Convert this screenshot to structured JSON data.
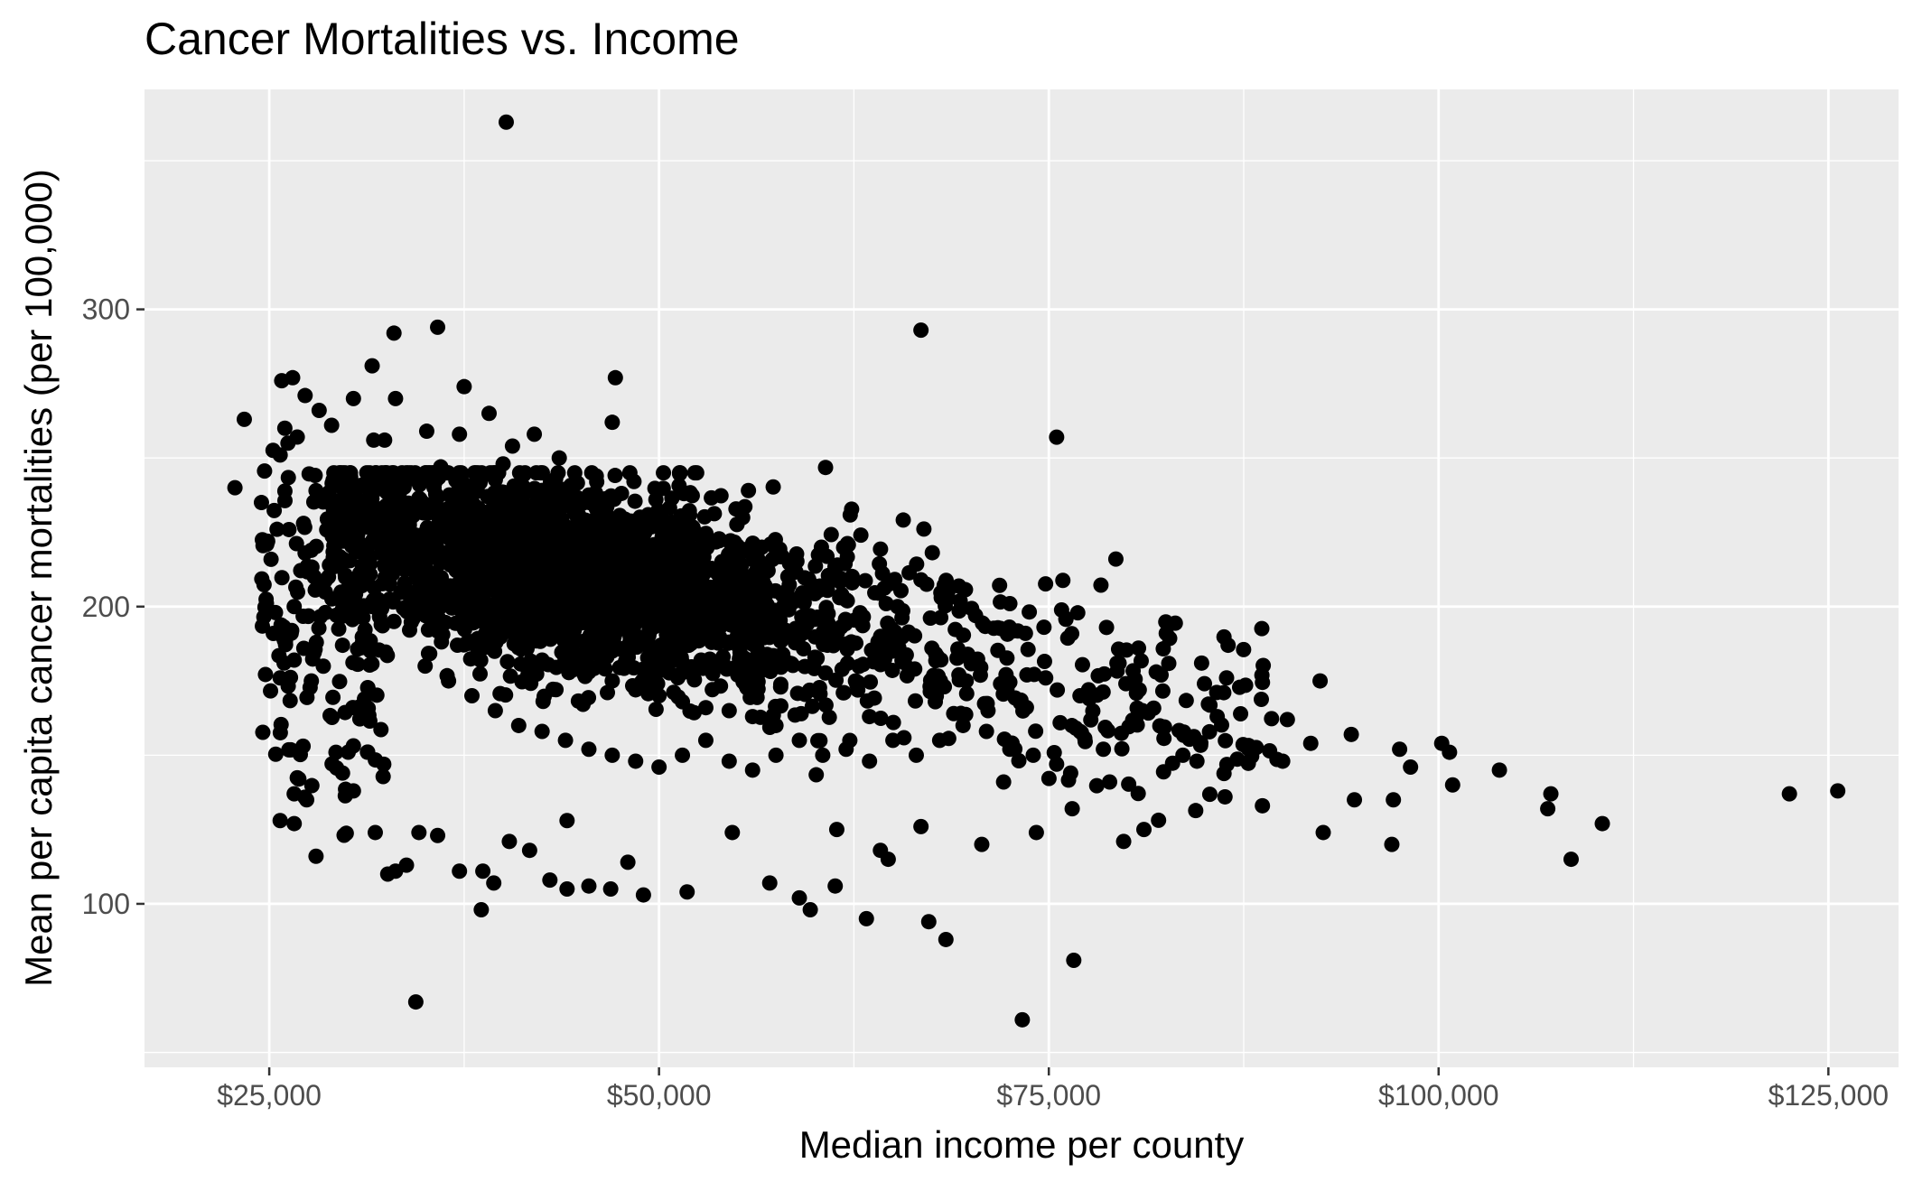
{
  "chart_data": {
    "type": "scatter",
    "title": "Cancer Mortalities vs. Income",
    "xlabel": "Median income per county",
    "ylabel": "Mean per capita cancer mortalities (per 100,000)",
    "xlim": [
      17000,
      129500
    ],
    "ylim": [
      45,
      374
    ],
    "x_ticks": [
      25000,
      50000,
      75000,
      100000,
      125000
    ],
    "x_tick_labels": [
      "$25,000",
      "$50,000",
      "$75,000",
      "$100,000",
      "$125,000"
    ],
    "y_ticks": [
      100,
      200,
      300
    ],
    "y_tick_labels": [
      "100",
      "200",
      "300"
    ],
    "grid": true,
    "colors": {
      "panel": "#ebebeb",
      "grid": "#ffffff",
      "point": "#000000",
      "tick": "#333333"
    },
    "points_note": "dense cloud of roughly 3000 county points; outliers and cluster centers listed",
    "points": [
      [
        40200,
        363
      ],
      [
        66800,
        293
      ],
      [
        35800,
        294
      ],
      [
        33000,
        292
      ],
      [
        75500,
        257
      ],
      [
        79300,
        216
      ],
      [
        47200,
        277
      ],
      [
        47000,
        262
      ],
      [
        23400,
        263
      ],
      [
        25800,
        276
      ],
      [
        26500,
        277
      ],
      [
        31600,
        281
      ],
      [
        22800,
        240
      ],
      [
        24900,
        222
      ],
      [
        25400,
        198
      ],
      [
        26600,
        200
      ],
      [
        24500,
        235
      ],
      [
        34400,
        67
      ],
      [
        73300,
        61
      ],
      [
        76600,
        81
      ],
      [
        38600,
        98
      ],
      [
        63300,
        95
      ],
      [
        67300,
        94
      ],
      [
        68400,
        88
      ],
      [
        59700,
        98
      ],
      [
        49000,
        103
      ],
      [
        51800,
        104
      ],
      [
        45500,
        106
      ],
      [
        61300,
        106
      ],
      [
        125600,
        138
      ],
      [
        122500,
        137
      ],
      [
        108500,
        115
      ],
      [
        110500,
        127
      ],
      [
        107200,
        137
      ],
      [
        107000,
        132
      ],
      [
        103900,
        145
      ],
      [
        100700,
        151
      ],
      [
        100200,
        154
      ],
      [
        100900,
        140
      ],
      [
        97500,
        152
      ],
      [
        98200,
        146
      ],
      [
        97100,
        135
      ],
      [
        97000,
        120
      ],
      [
        94600,
        135
      ],
      [
        94400,
        157
      ],
      [
        92400,
        175
      ],
      [
        92600,
        124
      ],
      [
        91800,
        154
      ],
      [
        90300,
        162
      ],
      [
        90000,
        148
      ],
      [
        88700,
        133
      ],
      [
        86500,
        187
      ],
      [
        86400,
        176
      ],
      [
        86300,
        136
      ],
      [
        85800,
        163
      ],
      [
        84800,
        181
      ],
      [
        84500,
        148
      ],
      [
        83600,
        150
      ],
      [
        82200,
        177
      ],
      [
        81100,
        125
      ],
      [
        81000,
        165
      ],
      [
        80800,
        172
      ],
      [
        79800,
        121
      ],
      [
        78900,
        141
      ],
      [
        78700,
        193
      ],
      [
        77600,
        169
      ],
      [
        76500,
        132
      ],
      [
        76400,
        144
      ],
      [
        77000,
        170
      ],
      [
        76100,
        196
      ],
      [
        74800,
        176
      ],
      [
        74200,
        124
      ],
      [
        73500,
        191
      ],
      [
        72500,
        201
      ],
      [
        72100,
        141
      ],
      [
        71100,
        165
      ],
      [
        70700,
        120
      ],
      [
        70300,
        197
      ],
      [
        69700,
        175
      ],
      [
        68900,
        164
      ],
      [
        68100,
        203
      ],
      [
        67500,
        186
      ],
      [
        66800,
        209
      ],
      [
        66800,
        126
      ],
      [
        66400,
        179
      ],
      [
        65300,
        200
      ],
      [
        64700,
        115
      ],
      [
        64200,
        118
      ],
      [
        63500,
        163
      ],
      [
        62600,
        175
      ],
      [
        61400,
        125
      ],
      [
        61300,
        209
      ],
      [
        60800,
        187
      ],
      [
        60200,
        206
      ],
      [
        59000,
        102
      ],
      [
        57900,
        204
      ],
      [
        57100,
        107
      ],
      [
        55300,
        214
      ],
      [
        54700,
        124
      ],
      [
        52200,
        226
      ],
      [
        51600,
        238
      ],
      [
        49800,
        236
      ],
      [
        48000,
        114
      ],
      [
        46900,
        105
      ],
      [
        44100,
        105
      ],
      [
        43000,
        108
      ],
      [
        43600,
        250
      ],
      [
        42000,
        258
      ],
      [
        40600,
        254
      ],
      [
        40000,
        248
      ],
      [
        39100,
        265
      ],
      [
        37500,
        274
      ],
      [
        37200,
        258
      ],
      [
        36000,
        247
      ],
      [
        35100,
        259
      ],
      [
        33100,
        270
      ],
      [
        32400,
        256
      ],
      [
        31700,
        256
      ],
      [
        30400,
        270
      ],
      [
        29000,
        261
      ],
      [
        28200,
        266
      ],
      [
        27300,
        271
      ],
      [
        26000,
        260
      ],
      [
        26200,
        255
      ],
      [
        25700,
        251
      ],
      [
        28000,
        239
      ],
      [
        27200,
        228
      ],
      [
        25500,
        226
      ],
      [
        27300,
        218
      ],
      [
        28800,
        210
      ],
      [
        28600,
        198
      ],
      [
        26600,
        182
      ],
      [
        25700,
        176
      ],
      [
        27700,
        175
      ],
      [
        29700,
        187
      ],
      [
        26900,
        142
      ],
      [
        27400,
        135
      ],
      [
        26600,
        137
      ],
      [
        26600,
        127
      ],
      [
        25700,
        128
      ],
      [
        28000,
        116
      ],
      [
        29700,
        144
      ],
      [
        30400,
        138
      ],
      [
        31800,
        124
      ],
      [
        32600,
        110
      ],
      [
        33100,
        111
      ],
      [
        33800,
        113
      ],
      [
        34600,
        124
      ],
      [
        35800,
        123
      ],
      [
        37200,
        111
      ],
      [
        38700,
        111
      ],
      [
        39400,
        107
      ],
      [
        40400,
        121
      ],
      [
        41700,
        118
      ],
      [
        44100,
        128
      ],
      [
        36000,
        200
      ],
      [
        37800,
        195
      ],
      [
        39500,
        190
      ],
      [
        41000,
        188
      ],
      [
        42500,
        182
      ],
      [
        44000,
        185
      ],
      [
        45500,
        178
      ],
      [
        47000,
        175
      ],
      [
        48500,
        172
      ],
      [
        50000,
        170
      ],
      [
        51500,
        168
      ],
      [
        53000,
        166
      ],
      [
        54500,
        165
      ],
      [
        56000,
        163
      ],
      [
        57500,
        160
      ],
      [
        34500,
        205
      ],
      [
        33000,
        195
      ],
      [
        31500,
        185
      ],
      [
        35000,
        180
      ],
      [
        36500,
        175
      ],
      [
        38000,
        170
      ],
      [
        39500,
        165
      ],
      [
        41000,
        160
      ],
      [
        42500,
        158
      ],
      [
        44000,
        155
      ],
      [
        45500,
        152
      ],
      [
        47000,
        150
      ],
      [
        48500,
        148
      ],
      [
        50000,
        146
      ],
      [
        51500,
        150
      ],
      [
        53000,
        155
      ],
      [
        54500,
        148
      ],
      [
        56000,
        145
      ],
      [
        57500,
        150
      ],
      [
        59000,
        155
      ],
      [
        60500,
        150
      ],
      [
        62000,
        152
      ],
      [
        63500,
        148
      ],
      [
        65000,
        155
      ],
      [
        66500,
        150
      ],
      [
        68000,
        155
      ],
      [
        69500,
        160
      ],
      [
        71000,
        158
      ],
      [
        72500,
        152
      ],
      [
        74000,
        150
      ],
      [
        75500,
        147
      ],
      [
        77000,
        158
      ],
      [
        78500,
        152
      ]
    ]
  }
}
